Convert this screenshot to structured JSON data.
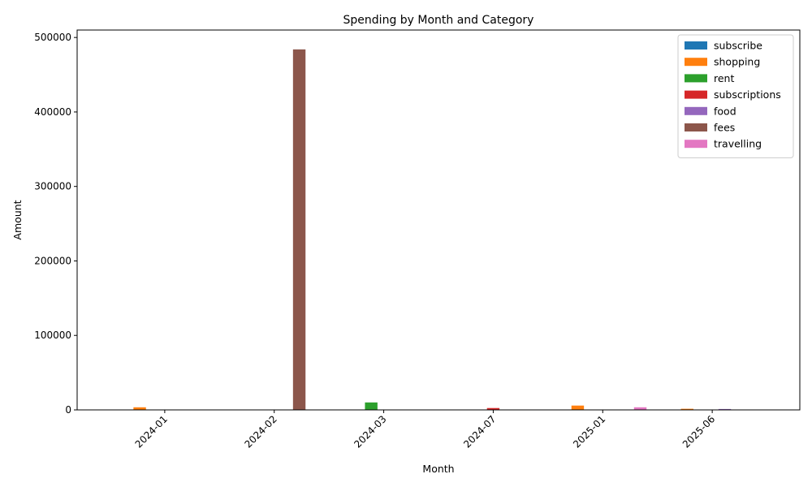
{
  "chart_data": {
    "type": "bar",
    "title": "Spending by Month and Category",
    "xlabel": "Month",
    "ylabel": "Amount",
    "categories": [
      "2024-01",
      "2024-02",
      "2024-03",
      "2024-07",
      "2025-01",
      "2025-06"
    ],
    "ylim": [
      0,
      510000
    ],
    "yticks": [
      0,
      100000,
      200000,
      300000,
      400000,
      500000
    ],
    "grid": false,
    "legend_position": "top-right",
    "series": [
      {
        "name": "subscribe",
        "color": "#1f77b4",
        "values": [
          0,
          0,
          0,
          0,
          0,
          0
        ]
      },
      {
        "name": "shopping",
        "color": "#ff7f0e",
        "values": [
          3500,
          0,
          0,
          0,
          5800,
          1500
        ]
      },
      {
        "name": "rent",
        "color": "#2ca02c",
        "values": [
          0,
          0,
          10000,
          0,
          0,
          0
        ]
      },
      {
        "name": "subscriptions",
        "color": "#d62728",
        "values": [
          0,
          0,
          0,
          2500,
          0,
          0
        ]
      },
      {
        "name": "food",
        "color": "#9467bd",
        "values": [
          0,
          0,
          0,
          0,
          0,
          1200
        ]
      },
      {
        "name": "fees",
        "color": "#8c564b",
        "values": [
          0,
          484000,
          0,
          0,
          0,
          0
        ]
      },
      {
        "name": "travelling",
        "color": "#e377c2",
        "values": [
          0,
          0,
          0,
          0,
          3500,
          0
        ]
      }
    ]
  }
}
